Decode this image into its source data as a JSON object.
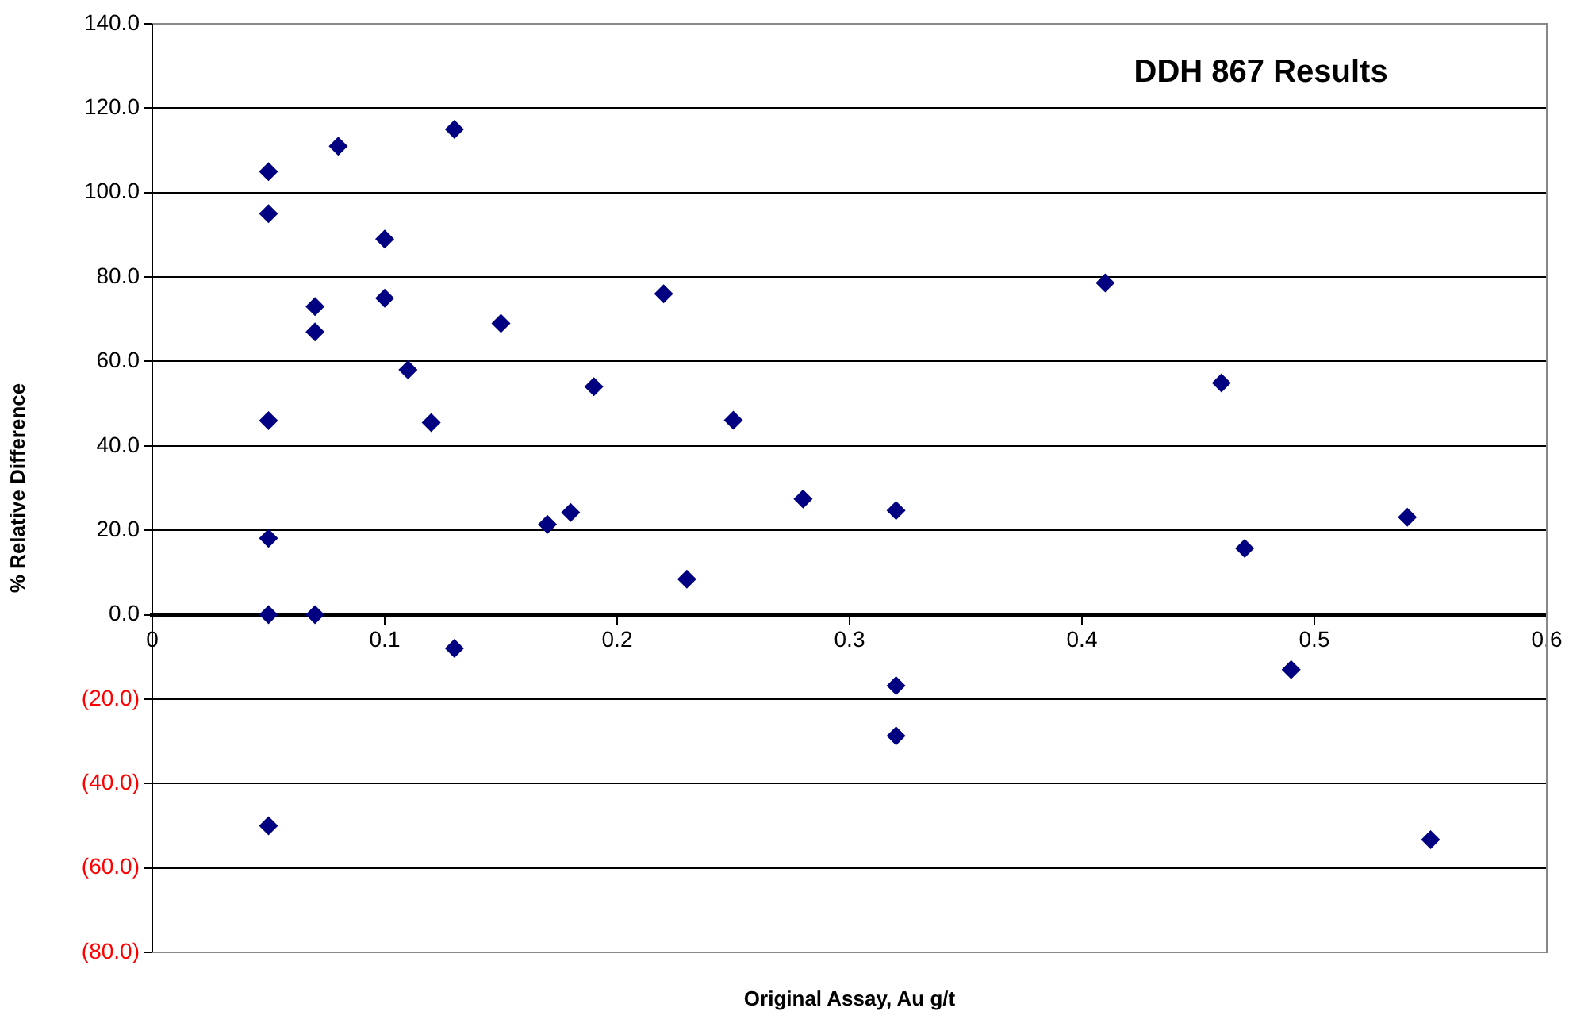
{
  "chart_data": {
    "type": "scatter",
    "title": "DDH 867 Results",
    "xlabel": "Original Assay, Au g/t",
    "ylabel": "% Relative Difference",
    "x": [
      0.05,
      0.08,
      0.13,
      0.05,
      0.1,
      0.07,
      0.07,
      0.1,
      0.15,
      0.22,
      0.11,
      0.19,
      0.05,
      0.12,
      0.17,
      0.18,
      0.23,
      0.05,
      0.05,
      0.07,
      0.13,
      0.32,
      0.32,
      0.05,
      0.41,
      0.46,
      0.25,
      0.28,
      0.32,
      0.54,
      0.47,
      0.49,
      0.55
    ],
    "series": [
      {
        "color": "#000080",
        "values": [
          105,
          111,
          115,
          95,
          89,
          73,
          67,
          75,
          69,
          76,
          58,
          54,
          46,
          45.5,
          21.4,
          24.2,
          8.4,
          18.1,
          0,
          0,
          -8,
          -16.8,
          -28.7,
          -50,
          78.6,
          54.9,
          46.1,
          27.4,
          24.7,
          23.1,
          15.7,
          -13,
          -53.3
        ]
      }
    ],
    "xlim": [
      0,
      0.6
    ],
    "xticks": [
      0,
      0.1,
      0.2,
      0.3,
      0.4,
      0.5,
      0.6
    ],
    "ylim": [
      -80,
      140
    ],
    "yticks": [
      {
        "value": -80,
        "label": "(80.0)"
      },
      {
        "value": -60,
        "label": "(60.0)"
      },
      {
        "value": -40,
        "label": "(40.0)"
      },
      {
        "value": -20,
        "label": "(20.0)"
      },
      {
        "value": 0,
        "label": "0.0"
      },
      {
        "value": 20,
        "label": "20.0"
      },
      {
        "value": 40,
        "label": "40.0"
      },
      {
        "value": 60,
        "label": "60.0"
      },
      {
        "value": 80,
        "label": "80.0"
      },
      {
        "value": 100,
        "label": "100.0"
      },
      {
        "value": 120,
        "label": "120.0"
      },
      {
        "value": 140,
        "label": "140.0"
      }
    ],
    "grid": "y",
    "legend": false,
    "marker": "diamond"
  }
}
